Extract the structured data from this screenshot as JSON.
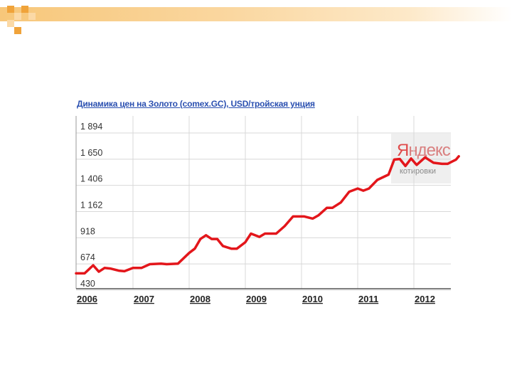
{
  "chart_data": {
    "type": "line",
    "title": "Динамика цен на Золото (comex.GC), USD/тройская унция",
    "xlabel": "",
    "ylabel": "",
    "x_ticks": [
      "2006",
      "2007",
      "2008",
      "2009",
      "2010",
      "2011",
      "2012"
    ],
    "y_ticks": [
      "1 894",
      "1 650",
      "1 406",
      "1 162",
      "918",
      "674",
      "430"
    ],
    "y_tick_values": [
      1894,
      1650,
      1406,
      1162,
      918,
      674,
      430
    ],
    "ylim": [
      430,
      1894
    ],
    "xlim": [
      2006.0,
      2012.83
    ],
    "grid": true,
    "legend": "none",
    "line_color": "#e3161b",
    "series": [
      {
        "x": [
          2006.0,
          2006.15,
          2006.3,
          2006.4,
          2006.5,
          2006.6,
          2006.75,
          2006.85,
          2007.0,
          2007.15,
          2007.3,
          2007.5,
          2007.6,
          2007.8,
          2008.0,
          2008.1,
          2008.2,
          2008.3,
          2008.4,
          2008.5,
          2008.6,
          2008.75,
          2008.85,
          2009.0,
          2009.1,
          2009.25,
          2009.35,
          2009.55,
          2009.7,
          2009.85,
          2010.05,
          2010.2,
          2010.3,
          2010.45,
          2010.55,
          2010.7,
          2010.85,
          2011.0,
          2011.1,
          2011.2,
          2011.35,
          2011.55,
          2011.65,
          2011.75,
          2011.85,
          2011.95,
          2012.05,
          2012.2,
          2012.35,
          2012.5,
          2012.6,
          2012.75,
          2012.8
        ],
        "y": [
          560,
          560,
          635,
          575,
          610,
          605,
          585,
          580,
          610,
          610,
          645,
          650,
          645,
          650,
          750,
          790,
          880,
          915,
          880,
          880,
          815,
          790,
          790,
          850,
          930,
          900,
          930,
          930,
          1000,
          1090,
          1090,
          1070,
          1100,
          1170,
          1170,
          1220,
          1320,
          1350,
          1330,
          1350,
          1430,
          1480,
          1620,
          1625,
          1560,
          1630,
          1570,
          1640,
          1590,
          1580,
          1580,
          1620,
          1650
        ]
      }
    ]
  },
  "watermark": {
    "logo_first": "Я",
    "logo_rest": "ндекс",
    "subtitle": "котировки",
    "logo_color": "#e04a4a"
  },
  "decor": {
    "accent": "#f0a33a",
    "accent_light": "#fbd9a6"
  }
}
